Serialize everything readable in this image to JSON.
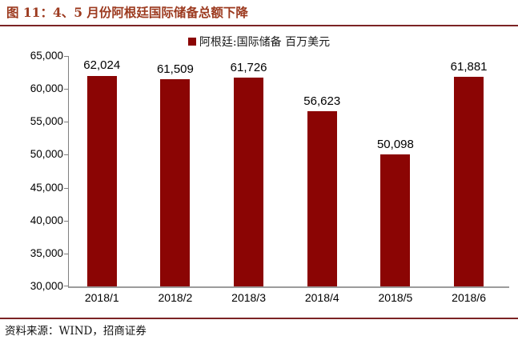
{
  "figure": {
    "title": "图 11：4、5 月份阿根廷国际储备总额下降",
    "source": "资料来源：WIND，招商证券"
  },
  "chart_data": {
    "type": "bar",
    "title": "图 11：4、5 月份阿根廷国际储备总额下降",
    "legend": [
      "阿根廷:国际储备 百万美元"
    ],
    "legend_position": "top-center",
    "categories": [
      "2018/1",
      "2018/2",
      "2018/3",
      "2018/4",
      "2018/5",
      "2018/6"
    ],
    "values": [
      62024,
      61509,
      61726,
      56623,
      50098,
      61881
    ],
    "value_labels": [
      "62,024",
      "61,509",
      "61,726",
      "56,623",
      "50,098",
      "61,881"
    ],
    "xlabel": "",
    "ylabel": "",
    "ylim": [
      30000,
      65000
    ],
    "ytick_step": 5000,
    "ytick_labels": [
      "65,000",
      "60,000",
      "55,000",
      "50,000",
      "45,000",
      "40,000",
      "35,000",
      "30,000"
    ],
    "grid": false
  },
  "colors": {
    "bar": "#8B0504",
    "legend_swatch": "#8B0504",
    "title_text": "#9C3A1F",
    "rule": "#7B2425",
    "axis": "#9c9c9c"
  }
}
